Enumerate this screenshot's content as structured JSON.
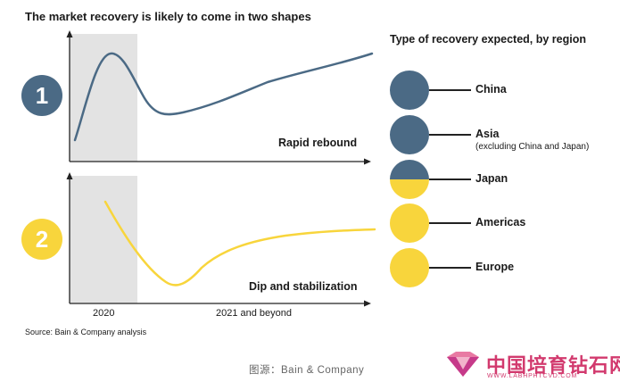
{
  "title": "The market recovery is likely to come in two shapes",
  "legend": {
    "title": "Type of recovery expected, by region",
    "items": [
      {
        "label": "China",
        "sub": "",
        "fill": "blue",
        "blue": 1.0
      },
      {
        "label": "Asia",
        "sub": "(excluding China and Japan)",
        "fill": "blue",
        "blue": 1.0
      },
      {
        "label": "Japan",
        "sub": "",
        "fill": "half",
        "blue": 0.5
      },
      {
        "label": "Americas",
        "sub": "",
        "fill": "yellow",
        "blue": 0.0
      },
      {
        "label": "Europe",
        "sub": "",
        "fill": "yellow",
        "blue": 0.0
      }
    ]
  },
  "shapes": [
    {
      "number": "1",
      "label": "Rapid rebound",
      "color": "#4b6a85"
    },
    {
      "number": "2",
      "label": "Dip and stabilization",
      "color": "#f8d53c"
    }
  ],
  "axis": {
    "period1": "2020",
    "period2": "2021 and beyond"
  },
  "source": "Source: Bain & Company analysis",
  "credit": "图源：Bain & Company",
  "watermark": {
    "text": "中国培育钻石网",
    "url": "WWW.LABHPHTCVD.COM"
  },
  "colors": {
    "blue": "#4b6a85",
    "yellow": "#f8d53c",
    "shade": "#e3e3e3",
    "brand_pink": "#d23a6e"
  }
}
